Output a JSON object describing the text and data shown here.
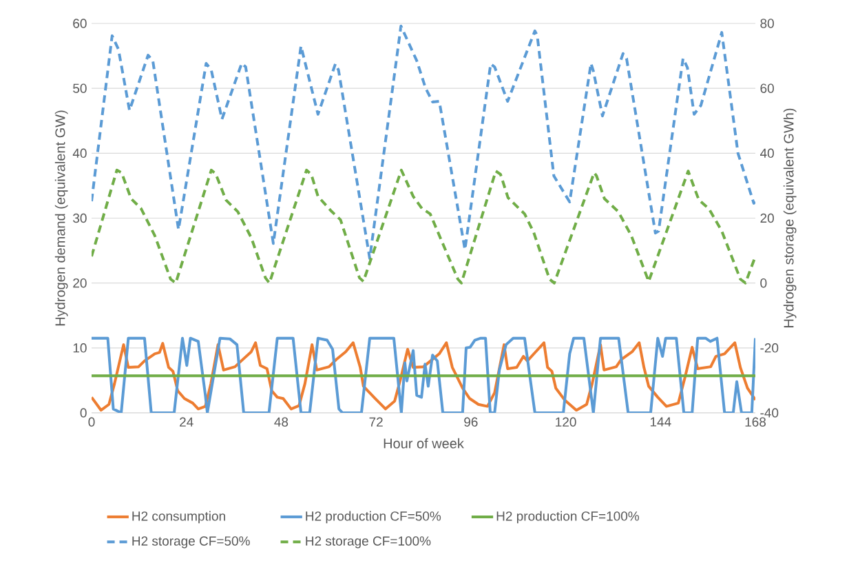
{
  "chart_data": {
    "type": "line",
    "xlabel": "Hour of week",
    "ylabel": "Hydrogen demand (equivalent GW)",
    "y2label": "Hydrogen storage (equivalent GWh)",
    "xlim": [
      0,
      168
    ],
    "xticks": [
      0,
      24,
      48,
      72,
      96,
      120,
      144,
      168
    ],
    "ylim": [
      0,
      60
    ],
    "yticks": [
      0,
      10,
      20,
      30,
      40,
      50,
      60
    ],
    "y2lim": [
      -40,
      80
    ],
    "y2ticks": [
      -40,
      -20,
      0,
      20,
      40,
      60,
      80
    ],
    "grid": "y",
    "legend": "bottom",
    "marker": "none",
    "series": [
      {
        "name": "H2 consumption",
        "color": "#ed7d31",
        "line_style": "solid",
        "x": [
          0,
          2.4,
          4.4,
          5.8,
          8.1,
          9.3,
          11.9,
          13.4,
          16,
          17.2,
          18,
          19.5,
          20.6,
          21.8,
          23.5,
          25.6,
          27,
          28.8,
          30.2,
          32,
          33.4,
          36.3,
          38.6,
          40.4,
          41.5,
          42.7,
          44.4,
          45.6,
          47,
          48.5,
          50.5,
          52.5,
          54,
          55.8,
          57,
          60.1,
          61.9,
          64.3,
          66.2,
          68,
          68.8,
          71.8,
          74.4,
          76.7,
          78.2,
          80,
          81.4,
          84,
          86.6,
          88,
          89.8,
          91.3,
          92.2,
          93.9,
          95.7,
          97.9,
          100.2,
          102,
          104.4,
          105.3,
          107.6,
          109.3,
          110.3,
          112.4,
          114.5,
          115.4,
          116.5,
          117.5,
          119.7,
          122.7,
          125.3,
          126.7,
          128.8,
          129.7,
          132.8,
          134,
          136.8,
          138.6,
          139.8,
          141,
          143.3,
          145.5,
          148.5,
          150.2,
          152,
          153.4,
          156.7,
          158,
          160.2,
          162.8,
          164.2,
          166,
          168
        ],
        "values": [
          2.4,
          0.4,
          1.3,
          4.5,
          10.5,
          7,
          7.1,
          8,
          9.1,
          9.3,
          10.7,
          7,
          6.4,
          3.4,
          2.2,
          1.5,
          0.6,
          1,
          4.5,
          10.5,
          6.6,
          7.1,
          8.4,
          9.4,
          10.8,
          7.3,
          6.8,
          3.4,
          2.4,
          2.2,
          0.6,
          1.1,
          4.5,
          10.5,
          6.6,
          7.1,
          8.2,
          9.4,
          10.8,
          7,
          4.1,
          2.2,
          0.6,
          1.8,
          5.2,
          9.8,
          7,
          7.1,
          8.4,
          9.1,
          10.8,
          7,
          5.9,
          3.8,
          2.2,
          1.3,
          1,
          3.1,
          10.5,
          6.8,
          7,
          8.7,
          8,
          9.4,
          10.8,
          7,
          6.4,
          3.8,
          2,
          0.4,
          1.3,
          4.5,
          10.5,
          6.6,
          7.1,
          8.2,
          9.4,
          10.8,
          7,
          4.1,
          2.4,
          1,
          1.5,
          5.5,
          10.1,
          6.8,
          7.1,
          8.7,
          9.1,
          10.8,
          7,
          3.8,
          2
        ]
      },
      {
        "name": "H2 production CF=50%",
        "color": "#5b9bd5",
        "line_style": "solid",
        "x": [
          0,
          4.1,
          5.5,
          7.5,
          9.3,
          13.4,
          15.1,
          20.9,
          23,
          24.1,
          25,
          27,
          28.8,
          29.3,
          32.5,
          35,
          36.8,
          38.5,
          44.9,
          47,
          51,
          53,
          55.2,
          57.3,
          59.6,
          61,
          62.6,
          63.5,
          68.3,
          70.4,
          76.5,
          78.4,
          79.3,
          79.8,
          81.4,
          82.3,
          83.5,
          84.4,
          85.2,
          86.3,
          87.5,
          88.9,
          93.9,
          94.8,
          95.8,
          97,
          98.5,
          99.7,
          100.9,
          102,
          103.2,
          104.9,
          106.7,
          109.6,
          112.2,
          119.4,
          121,
          122,
          124.6,
          127,
          128.8,
          133.4,
          135.8,
          141.5,
          143.3,
          144.5,
          145.3,
          148,
          149.9,
          152,
          153.4,
          155.4,
          156.6,
          158.3,
          160.2,
          162.4,
          163.3,
          164.5,
          167.1,
          168
        ],
        "values": [
          11.5,
          11.5,
          0.6,
          0,
          11.5,
          11.5,
          0,
          0,
          11.5,
          7.3,
          11.5,
          11,
          2.7,
          0,
          11.5,
          11.4,
          10.5,
          0,
          0,
          11.5,
          11.5,
          0,
          0,
          11.5,
          11.2,
          9.8,
          0.6,
          0,
          0,
          11.5,
          11.5,
          0,
          7.7,
          4.9,
          9.6,
          2.7,
          2.4,
          7.5,
          4.1,
          8.9,
          8,
          0,
          0,
          10,
          10.1,
          11.2,
          11.5,
          11.5,
          0,
          0,
          6.6,
          10.5,
          11.5,
          11.5,
          0,
          0,
          9.1,
          11.5,
          11.5,
          0,
          11.5,
          11.5,
          0,
          0,
          11.5,
          8.7,
          11.5,
          11.5,
          0,
          0,
          11.5,
          11.5,
          11,
          11.5,
          0,
          0,
          4.8,
          0,
          0,
          11.5
        ]
      },
      {
        "name": "H2 production CF=100%",
        "color": "#70ad47",
        "line_style": "solid",
        "x": [
          0,
          168
        ],
        "values": [
          5.7,
          5.7
        ]
      },
      {
        "name": "H2 storage CF=50%",
        "color": "#5b9bd5",
        "line_style": "dashed",
        "axis": "y2",
        "x": [
          0,
          5.2,
          6.8,
          9.6,
          14.3,
          15.5,
          22,
          29,
          30.3,
          33,
          38,
          39,
          46,
          53,
          57.3,
          61.7,
          62.5,
          70.4,
          78.3,
          82.3,
          84.5,
          86.3,
          88,
          94.5,
          101,
          102,
          105.3,
          112.2,
          112.8,
          117,
          121,
          126.4,
          127,
          129.3,
          134.5,
          135.4,
          142.7,
          143.5,
          149.7,
          150.8,
          152.5,
          154.2,
          159.5,
          163.6,
          167.6,
          168
        ],
        "values": [
          25.2,
          76.2,
          72,
          53.2,
          70.2,
          68.5,
          16.5,
          67.7,
          65.6,
          50.5,
          67.7,
          66.6,
          12.2,
          73,
          52,
          67.5,
          65.6,
          7.6,
          79.2,
          68.5,
          60.2,
          55.8,
          56,
          10.3,
          67.5,
          66.6,
          56,
          77.7,
          76.2,
          33,
          25,
          67.7,
          65.3,
          51.5,
          70.7,
          69.2,
          15.4,
          16,
          69.2,
          66.4,
          52,
          54.7,
          77.2,
          40,
          24.6,
          25
        ]
      },
      {
        "name": "H2 storage CF=100%",
        "color": "#70ad47",
        "line_style": "dashed",
        "axis": "y2",
        "x": [
          0,
          6.4,
          7.6,
          10,
          12.5,
          16,
          20,
          21.3,
          30.3,
          31.4,
          34,
          37,
          40.4,
          44,
          45,
          54.4,
          55.6,
          57.3,
          60.8,
          63,
          67.8,
          68.8,
          78.4,
          81.4,
          83.6,
          85.7,
          92.7,
          93.6,
          102.3,
          103.5,
          105.4,
          109.6,
          111.9,
          115.9,
          117.1,
          127.2,
          127.8,
          129.8,
          133.3,
          136.6,
          141,
          151,
          152.5,
          153.7,
          156.3,
          159.5,
          164.2,
          165.5,
          168
        ],
        "values": [
          8.2,
          34.8,
          34,
          26,
          23,
          14.6,
          1.2,
          0,
          34.8,
          33.7,
          25.6,
          22,
          14,
          1.6,
          0,
          34.8,
          33.5,
          26.7,
          22,
          19.5,
          1.6,
          0.5,
          34.8,
          26.7,
          23,
          21.3,
          1.2,
          0,
          34.5,
          33.5,
          26.3,
          21.3,
          15.6,
          1.2,
          0,
          34,
          33,
          26,
          22,
          14.6,
          0.5,
          34.5,
          29.5,
          25.6,
          22.8,
          16,
          1.2,
          0,
          8.2
        ]
      }
    ]
  }
}
